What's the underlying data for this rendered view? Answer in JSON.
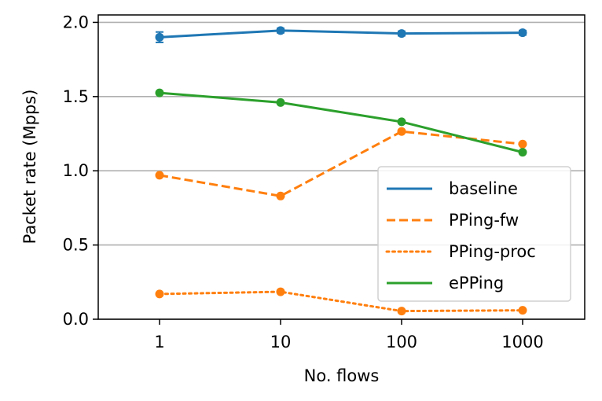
{
  "chart_data": {
    "type": "line",
    "xlabel": "No. flows",
    "ylabel": "Packet rate (Mpps)",
    "x_scale": "log",
    "categories": [
      "1",
      "10",
      "100",
      "1000"
    ],
    "x": [
      1,
      10,
      100,
      1000
    ],
    "xticks": [
      1,
      10,
      100,
      1000
    ],
    "ylim": [
      0,
      2.05
    ],
    "yticks": [
      "0.0",
      "0.5",
      "1.0",
      "1.5",
      "2.0"
    ],
    "grid": "horizontal",
    "legend_position": "right",
    "series": [
      {
        "name": "baseline",
        "values": [
          1.9,
          1.945,
          1.925,
          1.93
        ],
        "color": "#1f77b4",
        "style": "solid",
        "errors": [
          0.035,
          0.015,
          0.015,
          0.015
        ]
      },
      {
        "name": "PPing-fw",
        "values": [
          0.97,
          0.83,
          1.265,
          1.18
        ],
        "color": "#ff7f0e",
        "style": "dashed"
      },
      {
        "name": "PPing-proc",
        "values": [
          0.17,
          0.185,
          0.055,
          0.06
        ],
        "color": "#ff7f0e",
        "style": "dotted"
      },
      {
        "name": "ePPing",
        "values": [
          1.525,
          1.46,
          1.33,
          1.125
        ],
        "color": "#2ca02c",
        "style": "solid"
      }
    ]
  }
}
